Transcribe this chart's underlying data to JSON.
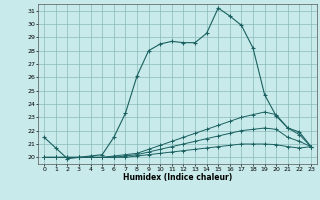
{
  "title": "",
  "xlabel": "Humidex (Indice chaleur)",
  "bg_color": "#c8eaea",
  "grid_color": "#8bbaba",
  "line_color": "#1a6060",
  "xlim": [
    -0.5,
    23.5
  ],
  "ylim": [
    19.5,
    31.5
  ],
  "xticks": [
    0,
    1,
    2,
    3,
    4,
    5,
    6,
    7,
    8,
    9,
    10,
    11,
    12,
    13,
    14,
    15,
    16,
    17,
    18,
    19,
    20,
    21,
    22,
    23
  ],
  "yticks": [
    20,
    21,
    22,
    23,
    24,
    25,
    26,
    27,
    28,
    29,
    30,
    31
  ],
  "line1_x": [
    0,
    1,
    2,
    3,
    4,
    5,
    6,
    7,
    8,
    9,
    10,
    11,
    12,
    13,
    14,
    15,
    16,
    17,
    18,
    19,
    20,
    21,
    22,
    23
  ],
  "line1_y": [
    21.5,
    20.7,
    19.9,
    20.0,
    20.1,
    20.2,
    21.5,
    23.3,
    26.1,
    28.0,
    28.5,
    28.7,
    28.6,
    28.6,
    29.3,
    31.2,
    30.6,
    29.9,
    28.2,
    24.7,
    23.1,
    22.2,
    21.9,
    20.8
  ],
  "line2_x": [
    0,
    1,
    2,
    3,
    4,
    5,
    6,
    7,
    8,
    9,
    10,
    11,
    12,
    13,
    14,
    15,
    16,
    17,
    18,
    19,
    20,
    21,
    22,
    23
  ],
  "line2_y": [
    20.0,
    20.0,
    20.0,
    20.0,
    20.0,
    20.0,
    20.1,
    20.2,
    20.3,
    20.6,
    20.9,
    21.2,
    21.5,
    21.8,
    22.1,
    22.4,
    22.7,
    23.0,
    23.2,
    23.4,
    23.2,
    22.2,
    21.7,
    20.8
  ],
  "line3_x": [
    0,
    1,
    2,
    3,
    4,
    5,
    6,
    7,
    8,
    9,
    10,
    11,
    12,
    13,
    14,
    15,
    16,
    17,
    18,
    19,
    20,
    21,
    22,
    23
  ],
  "line3_y": [
    20.0,
    20.0,
    20.0,
    20.0,
    20.0,
    20.0,
    20.0,
    20.1,
    20.2,
    20.4,
    20.6,
    20.8,
    21.0,
    21.2,
    21.4,
    21.6,
    21.8,
    22.0,
    22.1,
    22.2,
    22.1,
    21.5,
    21.2,
    20.8
  ],
  "line4_x": [
    0,
    1,
    2,
    3,
    4,
    5,
    6,
    7,
    8,
    9,
    10,
    11,
    12,
    13,
    14,
    15,
    16,
    17,
    18,
    19,
    20,
    21,
    22,
    23
  ],
  "line4_y": [
    20.0,
    20.0,
    20.0,
    20.0,
    20.0,
    20.0,
    20.0,
    20.0,
    20.1,
    20.2,
    20.3,
    20.4,
    20.5,
    20.6,
    20.7,
    20.8,
    20.9,
    21.0,
    21.0,
    21.0,
    20.95,
    20.8,
    20.7,
    20.8
  ]
}
